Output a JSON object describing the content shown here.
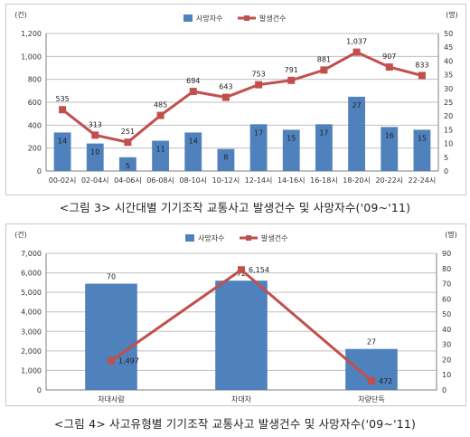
{
  "colors": {
    "bar": "#4f81bd",
    "line": "#c0504d",
    "grid": "#bfbfbf",
    "axis": "#7f7f7f"
  },
  "chart_data": [
    {
      "type": "bar+line",
      "caption": "<그림 3> 시간대별 기기조작 교통사고 발생건수 및 사망자수('09~'11)",
      "left_unit": "(건)",
      "right_unit": "(명)",
      "categories": [
        "00-02시",
        "02-04시",
        "04-06시",
        "06-08시",
        "08-10시",
        "10-12시",
        "12-14시",
        "14-16시",
        "16-18시",
        "18-20시",
        "20-22시",
        "22-24시"
      ],
      "y_left": {
        "min": 0,
        "max": 1200,
        "step": 200,
        "tick_labels": [
          "0",
          "200",
          "400",
          "600",
          "800",
          "1,000",
          "1,200"
        ]
      },
      "y_right": {
        "min": 0,
        "max": 50,
        "step": 5,
        "tick_labels": [
          "0",
          "5",
          "10",
          "15",
          "20",
          "25",
          "30",
          "35",
          "40",
          "45",
          "50"
        ]
      },
      "series": [
        {
          "name": "사망자수",
          "kind": "bar",
          "axis": "right",
          "values": [
            14,
            10,
            5,
            11,
            14,
            8,
            17,
            15,
            17,
            27,
            16,
            15
          ],
          "labels": [
            "14",
            "10",
            "5",
            "11",
            "14",
            "8",
            "17",
            "15",
            "17",
            "27",
            "16",
            "15"
          ]
        },
        {
          "name": "발생건수",
          "kind": "line",
          "axis": "left",
          "values": [
            535,
            313,
            251,
            485,
            694,
            643,
            753,
            791,
            881,
            1037,
            907,
            833
          ],
          "labels": [
            "535",
            "313",
            "251",
            "485",
            "694",
            "643",
            "753",
            "791",
            "881",
            "1,037",
            "907",
            "833"
          ]
        }
      ],
      "legend": "top-center",
      "grid": true
    },
    {
      "type": "bar+line",
      "caption": "<그림 4> 사고유형별 기기조작 교통사고 발생건수 및 사망자수('09~'11)",
      "left_unit": "(건)",
      "right_unit": "(명)",
      "categories": [
        "차대사람",
        "차대차",
        "차량단독"
      ],
      "y_left": {
        "min": 0,
        "max": 7000,
        "step": 1000,
        "tick_labels": [
          "0",
          "1,000",
          "2,000",
          "3,000",
          "4,000",
          "5,000",
          "6,000",
          "7,000"
        ]
      },
      "y_right": {
        "min": 0,
        "max": 90,
        "step": 10,
        "tick_labels": [
          "0",
          "10",
          "20",
          "30",
          "40",
          "50",
          "60",
          "70",
          "80",
          "90"
        ]
      },
      "series": [
        {
          "name": "사망자수",
          "kind": "bar",
          "axis": "right",
          "values": [
            70,
            72,
            27
          ],
          "labels": [
            "70",
            "72",
            "27"
          ]
        },
        {
          "name": "발생건수",
          "kind": "line",
          "axis": "left",
          "values": [
            1497,
            6154,
            472
          ],
          "labels": [
            "1,497",
            "6,154",
            "472"
          ]
        }
      ],
      "legend": "top-center",
      "grid": true
    }
  ]
}
